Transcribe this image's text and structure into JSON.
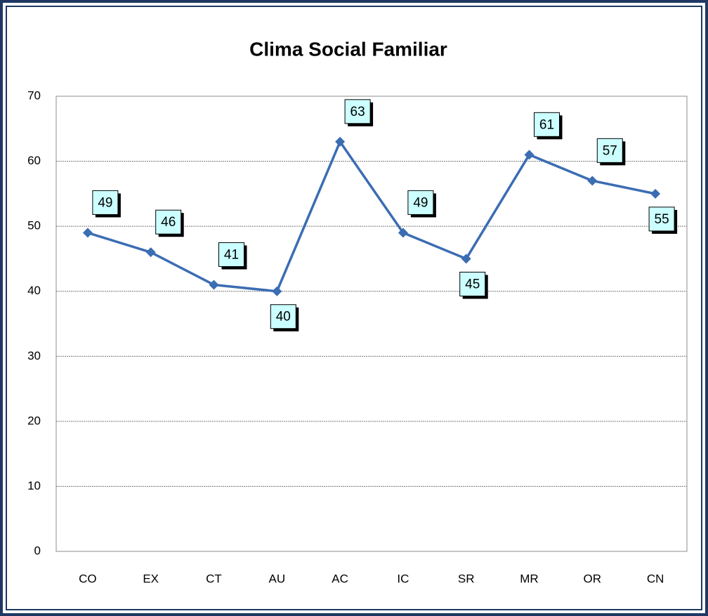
{
  "chart_data": {
    "type": "line",
    "title": "Clima Social Familiar",
    "categories": [
      "CO",
      "EX",
      "CT",
      "AU",
      "AC",
      "IC",
      "SR",
      "MR",
      "OR",
      "CN"
    ],
    "series": [
      {
        "color": "#3b6db3",
        "values": [
          49,
          46,
          41,
          40,
          63,
          49,
          45,
          61,
          57,
          55
        ]
      }
    ],
    "ylim": [
      0,
      70
    ],
    "yticks": [
      0,
      10,
      20,
      30,
      40,
      50,
      60,
      70
    ],
    "grid": true
  }
}
